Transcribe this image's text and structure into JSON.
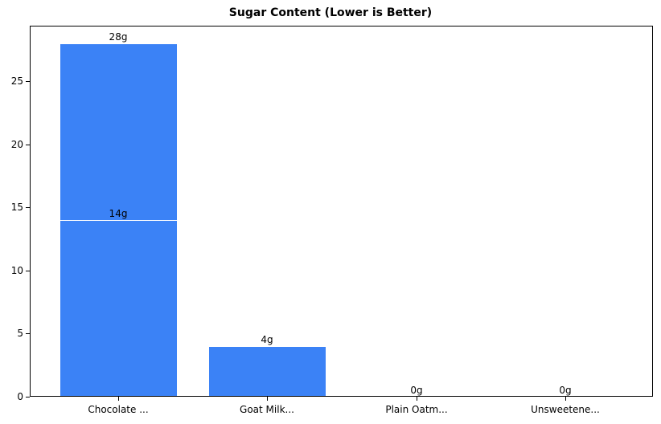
{
  "chart_data": {
    "type": "bar",
    "title": "Sugar Content (Lower is Better)",
    "xlabel": "",
    "ylabel": "",
    "categories": [
      "Chocolate ...",
      "Goat Milk...",
      "Plain Oatm...",
      "Unsweetene..."
    ],
    "series": [
      {
        "name": "sugar_g_overlay_1",
        "values": [
          28,
          4,
          0,
          0
        ],
        "labels": [
          "28g",
          "4g",
          "0g",
          "0g"
        ]
      },
      {
        "name": "sugar_g_overlay_2",
        "values": [
          14,
          null,
          null,
          null
        ],
        "labels": [
          "14g",
          null,
          null,
          null
        ]
      }
    ],
    "ylim": [
      0,
      29.4
    ],
    "yticks": [
      0,
      5,
      10,
      15,
      20,
      25
    ],
    "grid": false,
    "legend": null,
    "bar_color": "#3b82f6",
    "bar_edge_color": "#ffffff",
    "notes": "First category shows two overlapping bars (28g and 14g) drawn at the same x position."
  },
  "labels": {
    "title": "Sugar Content (Lower is Better)",
    "yticks": [
      "0",
      "5",
      "10",
      "15",
      "20",
      "25"
    ],
    "xticks": [
      "Chocolate ...",
      "Goat Milk...",
      "Plain Oatm...",
      "Unsweetene..."
    ],
    "bar_values": [
      "28g",
      "14g",
      "4g",
      "0g",
      "0g"
    ]
  }
}
